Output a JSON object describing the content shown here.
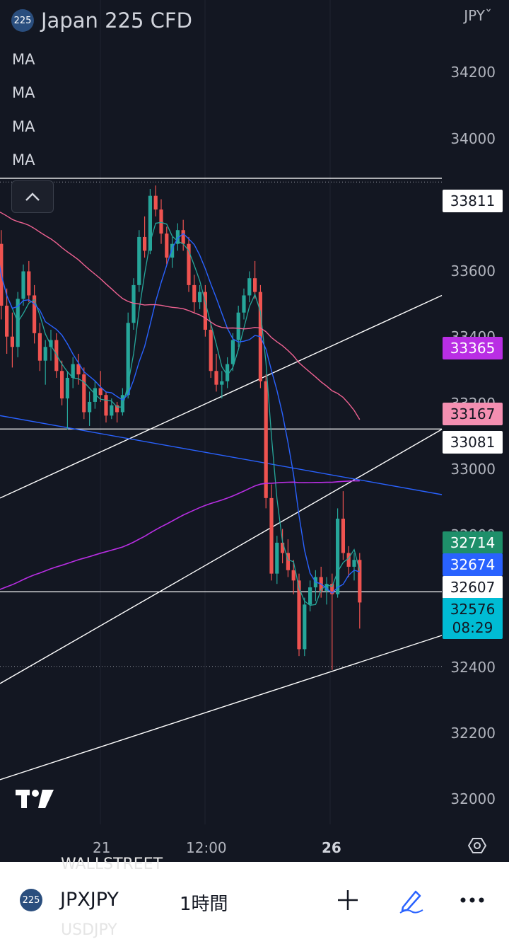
{
  "header": {
    "symbol_icon_text": "225",
    "title": "Japan 225 CFD",
    "ma_labels": [
      "MA",
      "MA",
      "MA",
      "MA"
    ],
    "currency": "JPYˇ"
  },
  "y_axis": {
    "ticks": [
      "34200",
      "34000",
      "33600",
      "33400",
      "33200",
      "33000",
      "32800",
      "32400",
      "32200",
      "32000"
    ]
  },
  "x_axis": {
    "ticks": [
      "21",
      "12:00",
      "26"
    ]
  },
  "price_tags": [
    {
      "value": "33811",
      "bg": "#ffffff",
      "fg": "#131722"
    },
    {
      "value": "33365",
      "bg": "#b92ee4",
      "fg": "#ffffff"
    },
    {
      "value": "33167",
      "bg": "#f48fb1",
      "fg": "#131722"
    },
    {
      "value": "33081",
      "bg": "#ffffff",
      "fg": "#131722"
    },
    {
      "value": "32714",
      "bg": "#1e8f6a",
      "fg": "#ffffff"
    },
    {
      "value": "32674",
      "bg": "#2962ff",
      "fg": "#ffffff"
    },
    {
      "value": "32607",
      "bg": "#ffffff",
      "fg": "#131722"
    },
    {
      "value": "32576",
      "bg": "#00bcd4",
      "fg": "#131722"
    }
  ],
  "countdown": "08:29",
  "chart_data": {
    "type": "candlestick",
    "timeframe": "1時間",
    "ylim": [
      31930,
      34330
    ],
    "x_ticks": [
      "21",
      "12:00",
      "26"
    ],
    "colors": {
      "up": "#26a69a",
      "down": "#ef5350",
      "ma_green": "#26a69a",
      "ma_blue": "#2962ff",
      "ma_pink": "#f06292",
      "ma_purple": "#b92ee4"
    },
    "candles": [
      [
        33690,
        33720,
        33560,
        33620
      ],
      [
        33620,
        33660,
        33400,
        33440
      ],
      [
        33440,
        33490,
        33300,
        33350
      ],
      [
        33350,
        33420,
        33260,
        33320
      ],
      [
        33320,
        33480,
        33290,
        33460
      ],
      [
        33460,
        33560,
        33440,
        33540
      ],
      [
        33540,
        33570,
        33450,
        33470
      ],
      [
        33470,
        33500,
        33330,
        33360
      ],
      [
        33360,
        33390,
        33250,
        33280
      ],
      [
        33280,
        33340,
        33210,
        33320
      ],
      [
        33320,
        33370,
        33280,
        33340
      ],
      [
        33340,
        33360,
        33230,
        33250
      ],
      [
        33250,
        33280,
        33150,
        33170
      ],
      [
        33170,
        33250,
        33080,
        33230
      ],
      [
        33230,
        33290,
        33200,
        33270
      ],
      [
        33270,
        33300,
        33210,
        33240
      ],
      [
        33240,
        33260,
        33110,
        33130
      ],
      [
        33130,
        33190,
        33090,
        33160
      ],
      [
        33160,
        33220,
        33140,
        33200
      ],
      [
        33200,
        33250,
        33160,
        33180
      ],
      [
        33180,
        33190,
        33100,
        33120
      ],
      [
        33120,
        33170,
        33110,
        33150
      ],
      [
        33150,
        33160,
        33100,
        33130
      ],
      [
        33130,
        33200,
        33120,
        33180
      ],
      [
        33180,
        33420,
        33170,
        33390
      ],
      [
        33390,
        33520,
        33370,
        33500
      ],
      [
        33500,
        33660,
        33480,
        33640
      ],
      [
        33640,
        33700,
        33580,
        33600
      ],
      [
        33600,
        33780,
        33590,
        33760
      ],
      [
        33760,
        33790,
        33700,
        33720
      ],
      [
        33720,
        33750,
        33620,
        33650
      ],
      [
        33650,
        33670,
        33560,
        33580
      ],
      [
        33580,
        33640,
        33550,
        33620
      ],
      [
        33620,
        33680,
        33600,
        33660
      ],
      [
        33660,
        33690,
        33600,
        33620
      ],
      [
        33620,
        33640,
        33480,
        33500
      ],
      [
        33500,
        33530,
        33420,
        33450
      ],
      [
        33450,
        33500,
        33430,
        33480
      ],
      [
        33480,
        33500,
        33350,
        33370
      ],
      [
        33370,
        33390,
        33230,
        33250
      ],
      [
        33250,
        33300,
        33190,
        33210
      ],
      [
        33210,
        33250,
        33170,
        33220
      ],
      [
        33220,
        33290,
        33200,
        33270
      ],
      [
        33270,
        33360,
        33250,
        33340
      ],
      [
        33340,
        33440,
        33320,
        33420
      ],
      [
        33420,
        33490,
        33400,
        33470
      ],
      [
        33470,
        33540,
        33450,
        33520
      ],
      [
        33520,
        33570,
        33460,
        33480
      ],
      [
        33480,
        33500,
        33200,
        33220
      ],
      [
        33220,
        33240,
        32850,
        32880
      ],
      [
        32880,
        32920,
        32640,
        32660
      ],
      [
        32660,
        32770,
        32630,
        32750
      ],
      [
        32750,
        32790,
        32690,
        32720
      ],
      [
        32720,
        32760,
        32650,
        32670
      ],
      [
        32670,
        32700,
        32600,
        32640
      ],
      [
        32640,
        32660,
        32420,
        32440
      ],
      [
        32440,
        32590,
        32420,
        32570
      ],
      [
        32570,
        32640,
        32550,
        32620
      ],
      [
        32620,
        32670,
        32580,
        32650
      ],
      [
        32650,
        32680,
        32590,
        32610
      ],
      [
        32610,
        32650,
        32570,
        32630
      ],
      [
        32630,
        32660,
        32380,
        32600
      ],
      [
        32600,
        32850,
        32590,
        32820
      ],
      [
        32820,
        32900,
        32700,
        32720
      ],
      [
        32720,
        32740,
        32650,
        32680
      ],
      [
        32680,
        32720,
        32640,
        32700
      ],
      [
        32700,
        32720,
        32500,
        32576
      ]
    ],
    "trend_lines": [
      {
        "from": [
          "2024-09-20T05:00",
          32880
        ],
        "to": [
          "2024-09-26T09:00",
          33470
        ],
        "color": "#ffffff"
      },
      {
        "from": [
          "2024-09-20T05:00",
          32340
        ],
        "to": [
          "2024-09-26T09:00",
          33080
        ],
        "color": "#ffffff"
      },
      {
        "from": [
          "2024-09-20T05:00",
          32060
        ],
        "to": [
          "2024-09-26T09:00",
          32480
        ],
        "color": "#ffffff"
      },
      {
        "from": [
          "2024-09-20T05:00",
          33120
        ],
        "to": [
          "2024-09-26T09:00",
          32890
        ],
        "color": "#2962ff"
      }
    ],
    "horizontal_lines": [
      33811,
      33081,
      32607
    ],
    "dotted_lines": [
      33800,
      32390
    ]
  },
  "bottom_bar": {
    "symbol_icon_text": "225",
    "symbol": "JPXJPY",
    "interval": "1時間",
    "ghost_top": "WALLSTREET",
    "ghost_bottom": "USDJPY"
  }
}
